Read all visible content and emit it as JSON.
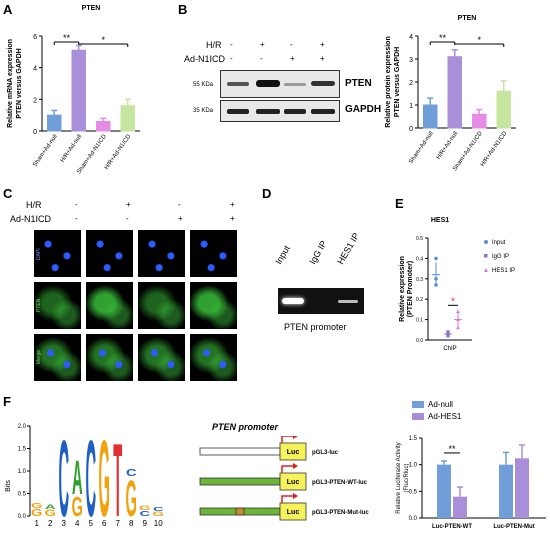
{
  "panels": {
    "A": "A",
    "B": "B",
    "C": "C",
    "D": "D",
    "E": "E",
    "F": "F"
  },
  "chart_data": [
    {
      "panel": "A",
      "type": "bar",
      "title": "PTEN",
      "ylabel": "Relative mRNA expression PTEN versus GAPDH",
      "categories": [
        "Sham+Ad-null",
        "H/R+Ad-null",
        "Sham+Ad-N1ICD",
        "H/R+Ad-N1ICD"
      ],
      "values": [
        1.0,
        5.1,
        0.6,
        1.6
      ],
      "errors": [
        0.3,
        0.3,
        0.2,
        0.4
      ],
      "colors": [
        "#6f9ed8",
        "#a98fd9",
        "#e68be6",
        "#c6e6a0"
      ],
      "ylim": [
        0,
        6
      ],
      "yticks": [
        "0",
        "2",
        "4",
        "6"
      ],
      "sig": [
        "**",
        "*"
      ]
    },
    {
      "panel": "B",
      "type": "bar",
      "title": "PTEN",
      "ylabel": "Relative protein expression PTEN versus GAPDH",
      "categories": [
        "Sham+Ad-null",
        "H/R+Ad-null",
        "Sham+Ad-N1ICD",
        "H/R+Ad-N1ICD"
      ],
      "values": [
        1.0,
        3.1,
        0.6,
        1.6
      ],
      "errors": [
        0.3,
        0.3,
        0.2,
        0.45
      ],
      "colors": [
        "#6f9ed8",
        "#a98fd9",
        "#e68be6",
        "#c6e6a0"
      ],
      "ylim": [
        0,
        4
      ],
      "yticks": [
        "0",
        "1",
        "2",
        "3",
        "4"
      ],
      "sig": [
        "**",
        "*"
      ]
    },
    {
      "panel": "E",
      "type": "scatter",
      "title": "HES1",
      "ylabel": "Relative expression (PTEN Promoter)",
      "xlabel": "ChIP",
      "ylim": [
        0,
        0.5
      ],
      "yticks": [
        "0.0",
        "0.1",
        "0.2",
        "0.3",
        "0.4",
        "0.5"
      ],
      "series": [
        {
          "name": "Input",
          "color": "#5b8fd6",
          "mean": 0.32,
          "sd": 0.06,
          "points": [
            0.4,
            0.3,
            0.27
          ]
        },
        {
          "name": "IgG IP",
          "color": "#8e6fd1",
          "mean": 0.03,
          "sd": 0.01,
          "points": [
            0.03,
            0.04,
            0.02
          ]
        },
        {
          "name": "HES1 IP",
          "color": "#d87ad8",
          "mean": 0.1,
          "sd": 0.04,
          "points": [
            0.14,
            0.1,
            0.06
          ]
        }
      ],
      "sig": "*"
    },
    {
      "panel": "F",
      "type": "bar",
      "ylabel": "Relative Luciferase Activity (Fluc/Rluc)",
      "categories": [
        "Luc-PTEN-WT",
        "Luc-PTEN-Mut"
      ],
      "ylim": [
        0,
        1.5
      ],
      "yticks": [
        "0.0",
        "0.5",
        "1.0",
        "1.5"
      ],
      "series": [
        {
          "name": "Ad-null",
          "color": "#6f9ed8",
          "values": [
            1.0,
            1.0
          ],
          "errors": [
            0.07,
            0.23
          ]
        },
        {
          "name": "Ad-HES1",
          "color": "#a98fd9",
          "values": [
            0.4,
            1.12
          ],
          "errors": [
            0.18,
            0.25
          ]
        }
      ],
      "sig": "**"
    }
  ],
  "blot": {
    "hr_label": "H/R",
    "n1icd_label": "Ad-N1ICD",
    "hr": [
      "-",
      "+",
      "-",
      "+"
    ],
    "n1icd": [
      "-",
      "-",
      "+",
      "+"
    ],
    "mw": [
      "55 KDa",
      "35 KDa"
    ],
    "bands": [
      "PTEN",
      "GAPDH"
    ]
  },
  "micro": {
    "hr_label": "H/R",
    "n1icd_label": "Ad-N1ICD",
    "hr": [
      "-",
      "+",
      "-",
      "+"
    ],
    "n1icd": [
      "-",
      "-",
      "+",
      "+"
    ],
    "rows": [
      "DAPI",
      "PTEN",
      "Merge"
    ]
  },
  "chip": {
    "lanes": [
      "Input",
      "IgG IP",
      "HES1 IP"
    ],
    "caption": "PTEN promoter"
  },
  "motif": {
    "ylabel": "Bits",
    "yticks": [
      "0.0",
      "0.5",
      "1.0",
      "1.5",
      "2.0"
    ],
    "positions": [
      "1",
      "2",
      "3",
      "4",
      "5",
      "6",
      "7",
      "8",
      "9",
      "10"
    ]
  },
  "promoter": {
    "title": "PTEN promoter",
    "constructs": [
      "pGL3-luc",
      "pGL3-PTEN-WT-luc",
      "pGL3-PTEN-Mut-luc"
    ],
    "luc": "Luc"
  }
}
